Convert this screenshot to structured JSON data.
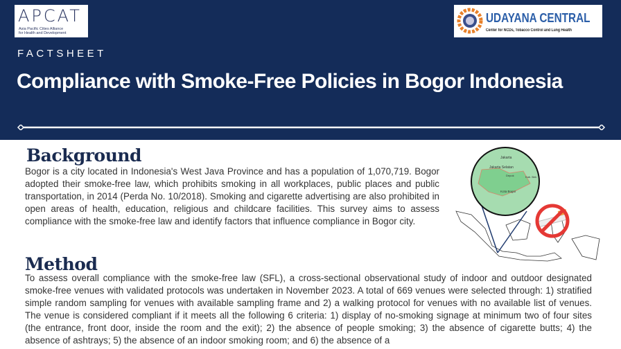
{
  "header": {
    "logo_left": {
      "name": "APCAT",
      "subtitle": "Asia Pacific Cities Alliance for Health and Development"
    },
    "logo_right": {
      "name": "UDAYANA CENTRAL",
      "subtitle": "Center for NCDs, Tobacco Control and Lung Health"
    },
    "eyebrow": "FACTSHEET",
    "title": "Compliance with Smoke-Free Policies in Bogor Indonesia"
  },
  "colors": {
    "header_bg": "#142c59",
    "heading": "#1a2b50",
    "map_green": "#8fd19e",
    "no_smoking_red": "#e53935"
  },
  "illustration": {
    "map_labels": [
      "Jakarta",
      "Jakarta Selatan",
      "Depok",
      "Kab. Bek",
      "Kota Bogor"
    ]
  },
  "background": {
    "heading": "Background",
    "text": "Bogor is a city located in Indonesia's West Java Province and has a population of 1,070,719. Bogor adopted their smoke-free law, which prohibits smoking in all workplaces, public places and public transportation, in 2014 (Perda No. 10/2018). Smoking and cigarette advertising are also prohibited in open areas of health, education, religious and childcare facilities. This survey aims to assess compliance with the smoke-free law and identify factors that influence compliance in Bogor city."
  },
  "method": {
    "heading": "Method",
    "text": "To assess overall compliance with the smoke-free law (SFL), a cross-sectional observational study of indoor and outdoor designated smoke-free venues with validated protocols was undertaken in November 2023. A total of 669 venues were selected through: 1) stratified simple random sampling for venues with available sampling frame and 2) a walking protocol for venues with no available list of venues. The venue is considered compliant if it meets all the following 6 criteria: 1) display of no-smoking signage at minimum two of four sites (the entrance, front door, inside the room and the exit); 2) the absence of people smoking; 3) the absence of cigarette butts; 4) the absence of ashtrays; 5) the absence of an indoor smoking room; and 6) the absence of a"
  }
}
